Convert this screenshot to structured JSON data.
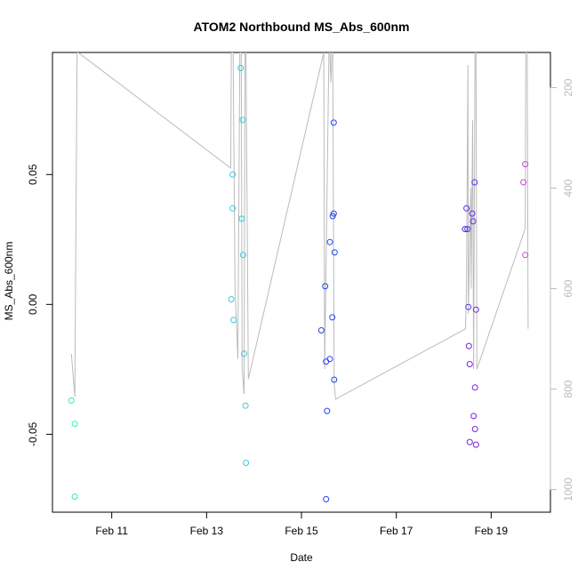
{
  "chart_data": {
    "type": "scatter",
    "title": "ATOM2 Northbound MS_Abs_600nm",
    "xlabel": "Date",
    "ylabel": "MS_Abs_600nm",
    "x_tick_labels": [
      "Feb 11",
      "Feb 13",
      "Feb 15",
      "Feb 17",
      "Feb 19"
    ],
    "x_tick_values": [
      11,
      13,
      15,
      17,
      19
    ],
    "xlim": [
      9.75,
      20.25
    ],
    "ylim": [
      -0.08,
      0.097
    ],
    "y_ticks": [
      -0.05,
      0.0,
      0.05
    ],
    "y_tick_labels": [
      "-0.05",
      "0.00",
      "0.05"
    ],
    "y2_ticks": [
      200,
      400,
      600,
      800,
      1000
    ],
    "y2_tick_labels": [
      "200",
      "400",
      "600",
      "800",
      "1000"
    ],
    "y2lim": [
      1045,
      130
    ],
    "grid": false,
    "points": [
      {
        "x": 10.15,
        "y": -0.037,
        "color": "#33eeaa"
      },
      {
        "x": 10.22,
        "y": -0.046,
        "color": "#33eeaa"
      },
      {
        "x": 10.22,
        "y": -0.074,
        "color": "#33eeaa"
      },
      {
        "x": 13.52,
        "y": 0.002,
        "color": "#33ccdd"
      },
      {
        "x": 13.55,
        "y": 0.05,
        "color": "#33ccdd"
      },
      {
        "x": 13.55,
        "y": 0.037,
        "color": "#33ccdd"
      },
      {
        "x": 13.57,
        "y": -0.006,
        "color": "#33ccdd"
      },
      {
        "x": 13.72,
        "y": 0.091,
        "color": "#33ccdd"
      },
      {
        "x": 13.74,
        "y": 0.033,
        "color": "#33ccdd"
      },
      {
        "x": 13.76,
        "y": 0.071,
        "color": "#33ccdd"
      },
      {
        "x": 13.77,
        "y": 0.019,
        "color": "#33ccdd"
      },
      {
        "x": 13.79,
        "y": -0.019,
        "color": "#33ccdd"
      },
      {
        "x": 13.82,
        "y": -0.039,
        "color": "#33ccdd"
      },
      {
        "x": 13.83,
        "y": -0.061,
        "color": "#33ccdd"
      },
      {
        "x": 15.42,
        "y": -0.01,
        "color": "#2244ee"
      },
      {
        "x": 15.5,
        "y": 0.007,
        "color": "#2244ee"
      },
      {
        "x": 15.52,
        "y": -0.022,
        "color": "#2244ee"
      },
      {
        "x": 15.54,
        "y": -0.041,
        "color": "#2244ee"
      },
      {
        "x": 15.52,
        "y": -0.075,
        "color": "#2244ee"
      },
      {
        "x": 15.6,
        "y": 0.024,
        "color": "#2244ee"
      },
      {
        "x": 15.6,
        "y": -0.021,
        "color": "#2244ee"
      },
      {
        "x": 15.65,
        "y": -0.005,
        "color": "#2244ee"
      },
      {
        "x": 15.66,
        "y": 0.034,
        "color": "#2244ee"
      },
      {
        "x": 15.68,
        "y": 0.035,
        "color": "#2244ee"
      },
      {
        "x": 15.68,
        "y": 0.07,
        "color": "#2244ee"
      },
      {
        "x": 15.7,
        "y": 0.02,
        "color": "#2244ee"
      },
      {
        "x": 15.69,
        "y": -0.029,
        "color": "#2244ee"
      },
      {
        "x": 18.45,
        "y": 0.029,
        "color": "#4433ee"
      },
      {
        "x": 18.48,
        "y": 0.037,
        "color": "#4433ee"
      },
      {
        "x": 18.5,
        "y": 0.029,
        "color": "#4433ee"
      },
      {
        "x": 18.52,
        "y": -0.001,
        "color": "#5533ee"
      },
      {
        "x": 18.53,
        "y": -0.016,
        "color": "#7722dd"
      },
      {
        "x": 18.55,
        "y": -0.023,
        "color": "#7722dd"
      },
      {
        "x": 18.55,
        "y": -0.053,
        "color": "#7722dd"
      },
      {
        "x": 18.6,
        "y": 0.035,
        "color": "#6633ee"
      },
      {
        "x": 18.62,
        "y": 0.032,
        "color": "#6633ee"
      },
      {
        "x": 18.63,
        "y": -0.043,
        "color": "#7722dd"
      },
      {
        "x": 18.65,
        "y": 0.047,
        "color": "#6633ee"
      },
      {
        "x": 18.66,
        "y": -0.032,
        "color": "#7722dd"
      },
      {
        "x": 18.66,
        "y": -0.048,
        "color": "#7722dd"
      },
      {
        "x": 18.68,
        "y": -0.002,
        "color": "#7722dd"
      },
      {
        "x": 18.68,
        "y": -0.054,
        "color": "#7722dd"
      },
      {
        "x": 19.68,
        "y": 0.047,
        "color": "#cc44dd"
      },
      {
        "x": 19.72,
        "y": 0.054,
        "color": "#cc44dd"
      },
      {
        "x": 19.72,
        "y": 0.019,
        "color": "#cc44dd"
      }
    ],
    "line_y2": [
      {
        "x": 10.15,
        "y2": 730
      },
      {
        "x": 10.22,
        "y2": 815
      },
      {
        "x": 10.27,
        "y2": 130
      },
      {
        "x": 10.29,
        "y2": 130
      },
      {
        "x": 13.51,
        "y2": 360
      },
      {
        "x": 13.52,
        "y2": 130
      },
      {
        "x": 13.56,
        "y2": 130
      },
      {
        "x": 13.6,
        "y2": 600
      },
      {
        "x": 13.66,
        "y2": 740
      },
      {
        "x": 13.7,
        "y2": 130
      },
      {
        "x": 13.73,
        "y2": 130
      },
      {
        "x": 13.75,
        "y2": 760
      },
      {
        "x": 13.79,
        "y2": 810
      },
      {
        "x": 13.81,
        "y2": 130
      },
      {
        "x": 13.83,
        "y2": 130
      },
      {
        "x": 13.88,
        "y2": 780
      },
      {
        "x": 15.47,
        "y2": 130
      },
      {
        "x": 15.49,
        "y2": 760
      },
      {
        "x": 15.58,
        "y2": 130
      },
      {
        "x": 15.6,
        "y2": 130
      },
      {
        "x": 15.62,
        "y2": 190
      },
      {
        "x": 15.64,
        "y2": 130
      },
      {
        "x": 15.66,
        "y2": 130
      },
      {
        "x": 15.69,
        "y2": 790
      },
      {
        "x": 15.72,
        "y2": 820
      },
      {
        "x": 18.46,
        "y2": 680
      },
      {
        "x": 18.48,
        "y2": 600
      },
      {
        "x": 18.51,
        "y2": 155
      },
      {
        "x": 18.52,
        "y2": 650
      },
      {
        "x": 18.57,
        "y2": 400
      },
      {
        "x": 18.58,
        "y2": 600
      },
      {
        "x": 18.61,
        "y2": 265
      },
      {
        "x": 18.63,
        "y2": 760
      },
      {
        "x": 18.66,
        "y2": 130
      },
      {
        "x": 18.68,
        "y2": 130
      },
      {
        "x": 18.7,
        "y2": 760
      },
      {
        "x": 19.72,
        "y2": 480
      },
      {
        "x": 19.73,
        "y2": 130
      },
      {
        "x": 19.76,
        "y2": 130
      },
      {
        "x": 19.78,
        "y2": 680
      }
    ],
    "line_color": "#bbbbbb"
  }
}
